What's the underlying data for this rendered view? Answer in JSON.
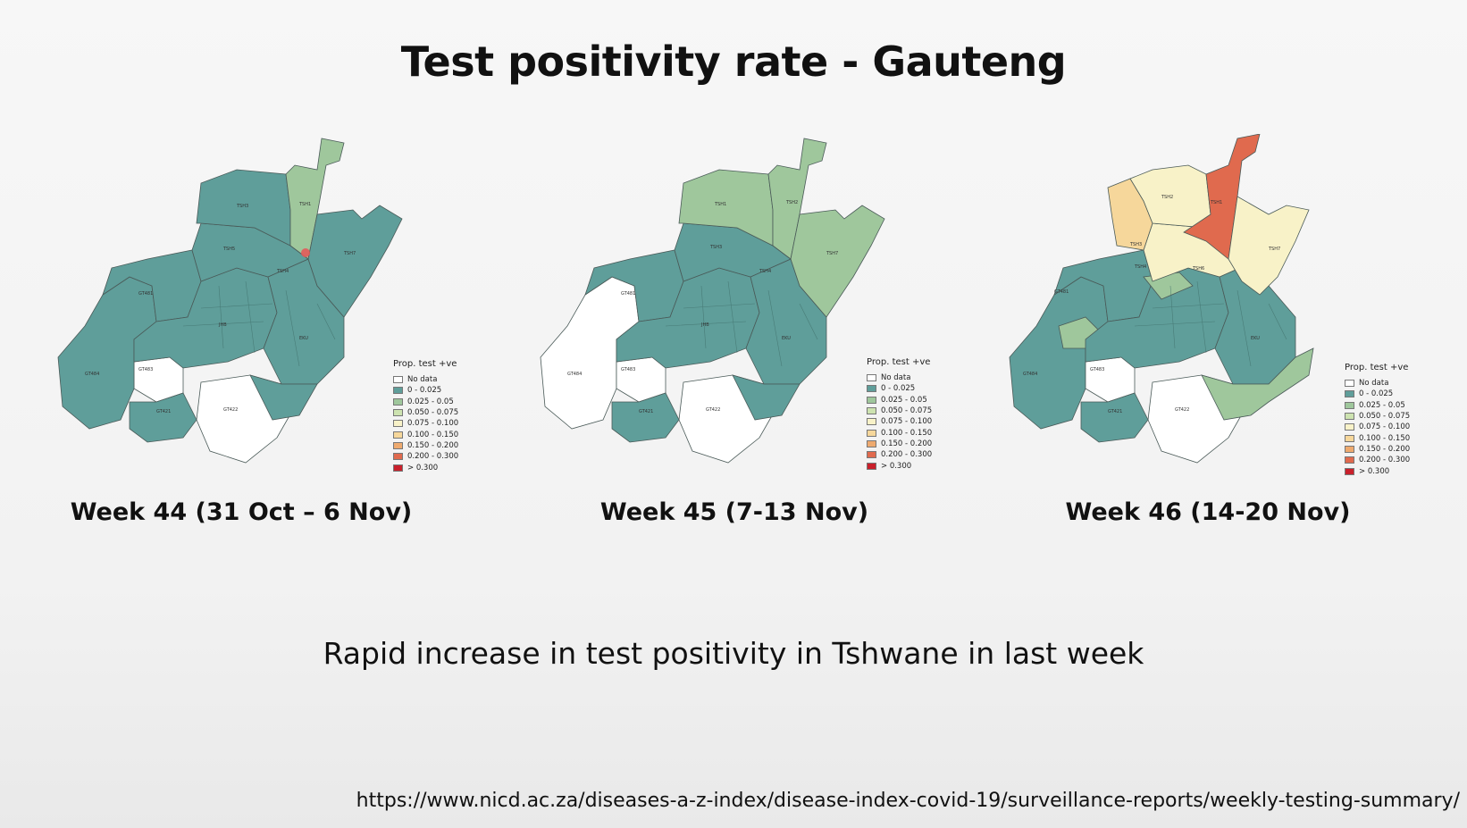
{
  "title": "Test positivity rate - Gauteng",
  "subtitle": "Rapid increase in test positivity in Tshwane in last week",
  "source_url": "https://www.nicd.ac.za/diseases-a-z-index/disease-index-covid-19/surveillance-reports/weekly-testing-summary/",
  "legend": {
    "title": "Prop. test +ve",
    "classes": [
      {
        "label": "No data",
        "color": "#ffffff"
      },
      {
        "label": "0 - 0.025",
        "color": "#5f9e9a"
      },
      {
        "label": "0.025 - 0.05",
        "color": "#9fc79c"
      },
      {
        "label": "0.050 - 0.075",
        "color": "#cde3b0"
      },
      {
        "label": "0.075 - 0.100",
        "color": "#f8f2c8"
      },
      {
        "label": "0.100 - 0.150",
        "color": "#f6d79b"
      },
      {
        "label": "0.150 - 0.200",
        "color": "#eeaa6f"
      },
      {
        "label": "0.200 - 0.300",
        "color": "#e06a4e"
      },
      {
        "label": "> 0.300",
        "color": "#c9202b"
      }
    ]
  },
  "maps": [
    {
      "caption": "Week 44 (31 Oct – 6 Nov)",
      "regions": {
        "tshwane_north": "0 - 0.025",
        "tshwane_northeast": "0.025 - 0.05",
        "tshwane_central": "0 - 0.025",
        "tshwane_east": "0 - 0.025",
        "mogale": "0 - 0.025",
        "joburg": "0 - 0.025",
        "ekurhuleni": "0 - 0.025",
        "west_rand": "0 - 0.025",
        "west_rand_south": "No data",
        "sedibeng": "No data",
        "emfuleni": "0 - 0.025",
        "ekurhuleni_south": "0 - 0.025"
      },
      "region_labels": [
        "TSH3",
        "TSH1",
        "TSH5",
        "TSH4",
        "TSH7",
        "GT481",
        "GT483",
        "GT484",
        "GT421",
        "GT422",
        "EKU",
        "JHB"
      ]
    },
    {
      "caption": "Week 45 (7-13 Nov)",
      "regions": {
        "tshwane_north": "0.025 - 0.05",
        "tshwane_northeast": "0.025 - 0.05",
        "tshwane_central": "0 - 0.025",
        "tshwane_east": "0.025 - 0.05",
        "mogale": "0 - 0.025",
        "joburg": "0 - 0.025",
        "ekurhuleni": "0 - 0.025",
        "west_rand": "No data",
        "west_rand_south": "No data",
        "sedibeng": "No data",
        "emfuleni": "0 - 0.025",
        "ekurhuleni_south": "0 - 0.025"
      },
      "region_labels": [
        "TSH1",
        "TSH2",
        "TSH3",
        "TSH4",
        "TSH7",
        "GT481",
        "GT483",
        "GT484",
        "GT421",
        "GT422",
        "EKU",
        "JHB"
      ]
    },
    {
      "caption": "Week 46 (14-20 Nov)",
      "regions": {
        "tshwane_north": "0.075 - 0.100",
        "tshwane_northeast": "0.200 - 0.300",
        "tshwane_central": "0.075 - 0.100",
        "tshwane_east": "0.075 - 0.100",
        "tshwane_west": "0.100 - 0.150",
        "mogale": "0 - 0.025",
        "joburg": "0 - 0.025",
        "ekurhuleni": "0 - 0.025",
        "west_rand": "0 - 0.025",
        "west_rand_south": "No data",
        "sedibeng": "No data",
        "emfuleni": "0 - 0.025",
        "ekurhuleni_south": "0.025 - 0.05",
        "joburg_north": "0.025 - 0.05",
        "mogale_inner": "0.025 - 0.05"
      },
      "region_labels": [
        "TSH2",
        "TSH1",
        "TSH3",
        "TSH4",
        "TSH6",
        "TSH7",
        "GT481",
        "GT483",
        "GT484",
        "GT421",
        "GT422",
        "EKU"
      ]
    }
  ]
}
